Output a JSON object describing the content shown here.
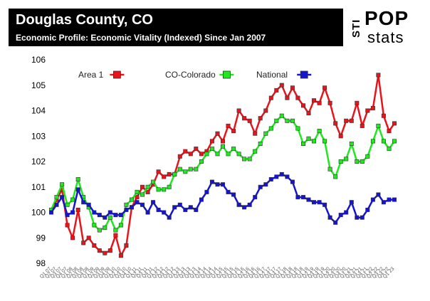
{
  "header": {
    "title": "Douglas County, CO",
    "subtitle": "Economic Profile: Economic Vitality (Indexed) Since Jan 2007"
  },
  "logo": {
    "sti": "STI",
    "pop": "POP",
    "stats": "stats"
  },
  "chart_data": {
    "type": "line",
    "title": "",
    "xlabel": "",
    "ylabel": "",
    "ylim": [
      98,
      106
    ],
    "y_ticks": [
      98,
      99,
      100,
      101,
      102,
      103,
      104,
      105,
      106
    ],
    "grid": false,
    "legend_position": "top",
    "x_tick_labels": [
      "Q1 07",
      "Q2 07",
      "Q3 07",
      "Q4 07",
      "Q1 08",
      "Q2 08",
      "Q3 08",
      "Q4 08",
      "Q1 09",
      "Q2 09",
      "Q3 09",
      "Q4 09",
      "Q1 10",
      "Q2 10",
      "Q3 10",
      "Q4 10",
      "Q1 11",
      "Q2 11",
      "Q3 11",
      "Q4 11",
      "Q1 12",
      "Q2 12",
      "Q3 12",
      "Q4 12",
      "Q1 13",
      "Q2 13",
      "Q3 13",
      "Q4 13",
      "Q1 14",
      "Q2 14",
      "Q3 14",
      "Q4 14",
      "Q1 15",
      "Q2 15",
      "Q3 15",
      "Q4 15",
      "Q1 16",
      "Q2 16",
      "Q3 16",
      "Q4 16",
      "Q1 17",
      "Q2 17",
      "Q3 17",
      "Q4 17",
      "Q1 18",
      "Q2 18",
      "Q3 18",
      "Q4 18",
      "Q1 19",
      "Q2 19",
      "Q3 19",
      "Q4 19",
      "Q1 20",
      "Q2 20",
      "Q3 20",
      "Q4 20",
      "Q1 21",
      "Q2 21",
      "Q3 21",
      "Q4 21",
      "Q1 22",
      "Q2 22",
      "Q3 22",
      "Q4 22",
      "Q1 23"
    ],
    "series": [
      {
        "name": "Area 1",
        "color": "#e8141b",
        "values": [
          100.0,
          100.5,
          100.9,
          99.5,
          99.0,
          100.1,
          98.8,
          99.0,
          98.7,
          98.5,
          98.4,
          98.5,
          99.1,
          98.3,
          98.7,
          100.2,
          100.6,
          101.0,
          100.8,
          101.1,
          101.6,
          101.4,
          101.5,
          101.5,
          102.2,
          102.4,
          102.3,
          102.5,
          102.3,
          102.4,
          102.8,
          103.1,
          102.8,
          103.4,
          103.2,
          104.0,
          103.7,
          103.6,
          103.1,
          103.7,
          104.0,
          104.5,
          104.8,
          105.0,
          104.5,
          104.9,
          104.5,
          104.2,
          103.9,
          104.4,
          104.3,
          104.9,
          104.3,
          103.5,
          103.0,
          103.6,
          103.6,
          104.3,
          103.4,
          104.0,
          104.1,
          105.4,
          103.8,
          103.2,
          103.5
        ]
      },
      {
        "name": "CO-Colorado",
        "color": "#1fe81f",
        "values": [
          100.1,
          100.6,
          101.1,
          100.3,
          100.5,
          101.3,
          100.6,
          100.2,
          99.5,
          99.3,
          99.4,
          99.8,
          99.3,
          99.5,
          100.3,
          100.5,
          100.8,
          100.7,
          101.0,
          101.2,
          100.9,
          100.9,
          101.0,
          101.5,
          101.7,
          101.6,
          101.7,
          101.7,
          102.0,
          102.3,
          102.5,
          102.3,
          102.6,
          102.3,
          102.5,
          102.3,
          102.1,
          102.1,
          102.4,
          102.7,
          103.1,
          103.3,
          103.6,
          103.8,
          103.6,
          103.6,
          103.3,
          102.7,
          102.9,
          102.8,
          103.2,
          102.8,
          101.7,
          101.4,
          102.0,
          102.1,
          102.7,
          102.0,
          102.0,
          102.2,
          102.8,
          103.4,
          102.8,
          102.5,
          102.8
        ]
      },
      {
        "name": "National",
        "color": "#1414d2",
        "values": [
          100.0,
          100.3,
          100.6,
          99.9,
          100.0,
          100.9,
          100.4,
          100.3,
          100.0,
          99.9,
          99.8,
          100.0,
          99.9,
          99.9,
          100.1,
          100.2,
          100.4,
          100.3,
          100.0,
          100.4,
          100.1,
          100.0,
          99.8,
          100.2,
          100.3,
          100.1,
          100.2,
          100.1,
          100.5,
          100.8,
          101.2,
          101.1,
          101.1,
          100.8,
          100.7,
          100.3,
          100.2,
          100.3,
          100.6,
          101.0,
          101.1,
          101.3,
          101.4,
          101.5,
          101.4,
          101.2,
          100.6,
          100.6,
          100.5,
          100.4,
          100.4,
          100.3,
          99.8,
          99.6,
          99.9,
          100.0,
          100.4,
          99.8,
          99.8,
          100.1,
          100.5,
          100.7,
          100.4,
          100.5,
          100.5
        ]
      }
    ]
  }
}
